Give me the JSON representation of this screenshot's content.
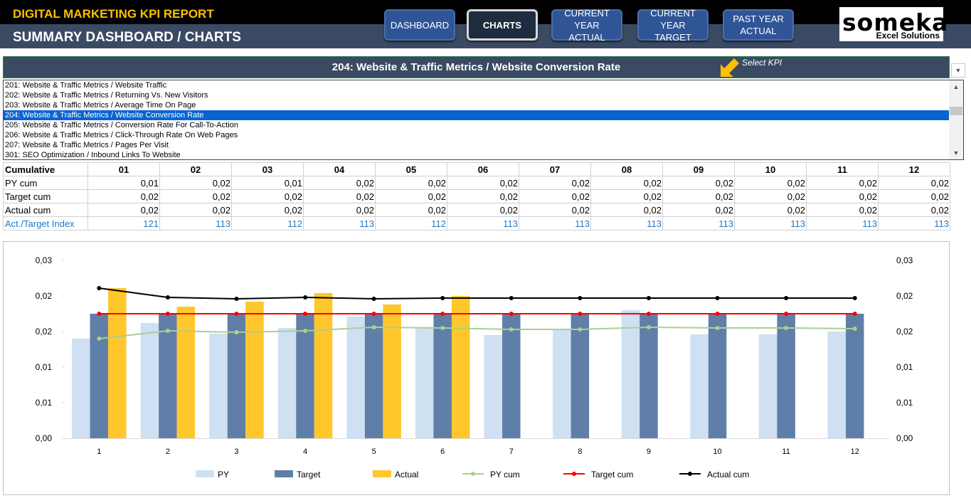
{
  "header": {
    "app_title": "DIGITAL MARKETING KPI REPORT",
    "page_title": "SUMMARY DASHBOARD / CHARTS",
    "nav": [
      {
        "line1": "DASHBOARD",
        "line2": ""
      },
      {
        "line1": "CHARTS",
        "line2": ""
      },
      {
        "line1": "CURRENT YEAR",
        "line2": "ACTUAL"
      },
      {
        "line1": "CURRENT YEAR",
        "line2": "TARGET"
      },
      {
        "line1": "PAST YEAR",
        "line2": "ACTUAL"
      }
    ],
    "active_nav": "CHARTS",
    "logo_word": "someka",
    "logo_sub": "Excel Solutions"
  },
  "kpi": {
    "selected_title": "204: Website & Traffic Metrics / Website Conversion Rate",
    "hint": "Select KPI",
    "options": [
      "201: Website & Traffic Metrics / Website Traffic",
      "202: Website & Traffic Metrics / Returning Vs. New Visitors",
      "203: Website & Traffic Metrics / Average Time On Page",
      "204: Website & Traffic Metrics / Website Conversion Rate",
      "205: Website & Traffic Metrics / Conversion Rate For Call-To-Action",
      "206: Website & Traffic Metrics / Click-Through Rate On Web Pages",
      "207: Website & Traffic Metrics / Pages Per Visit",
      "301: SEO Optimization / Inbound Links To Website"
    ],
    "selected_index": 3
  },
  "cumulative_table": {
    "header_label": "Cumulative",
    "months": [
      "01",
      "02",
      "03",
      "04",
      "05",
      "06",
      "07",
      "08",
      "09",
      "10",
      "11",
      "12"
    ],
    "rows": [
      {
        "label": "PY cum",
        "values": [
          "0,01",
          "0,02",
          "0,01",
          "0,02",
          "0,02",
          "0,02",
          "0,02",
          "0,02",
          "0,02",
          "0,02",
          "0,02",
          "0,02"
        ]
      },
      {
        "label": "Target cum",
        "values": [
          "0,02",
          "0,02",
          "0,02",
          "0,02",
          "0,02",
          "0,02",
          "0,02",
          "0,02",
          "0,02",
          "0,02",
          "0,02",
          "0,02"
        ]
      },
      {
        "label": "Actual cum",
        "values": [
          "0,02",
          "0,02",
          "0,02",
          "0,02",
          "0,02",
          "0,02",
          "0,02",
          "0,02",
          "0,02",
          "0,02",
          "0,02",
          "0,02"
        ]
      },
      {
        "label": "Act./Target Index",
        "values": [
          "121",
          "113",
          "112",
          "113",
          "112",
          "113",
          "113",
          "113",
          "113",
          "113",
          "113",
          "113"
        ]
      }
    ]
  },
  "chart_data": {
    "type": "bar",
    "categories": [
      "1",
      "2",
      "3",
      "4",
      "5",
      "6",
      "7",
      "8",
      "9",
      "10",
      "11",
      "12"
    ],
    "ylim": [
      0,
      0.025
    ],
    "y_tick_labels": [
      "0,00",
      "0,01",
      "0,01",
      "0,02",
      "0,02",
      "0,03"
    ],
    "y_tick_values": [
      0,
      0.005,
      0.01,
      0.015,
      0.02,
      0.025
    ],
    "grid": false,
    "legend_position": "bottom",
    "series": [
      {
        "name": "PY",
        "type": "bar",
        "color": "#cfe0f3",
        "values": [
          0.014,
          0.0162,
          0.0147,
          0.0155,
          0.0171,
          0.0155,
          0.0145,
          0.0152,
          0.018,
          0.0146,
          0.0146,
          0.015
        ]
      },
      {
        "name": "Target",
        "type": "bar",
        "color": "#5f7fa8",
        "values": [
          0.0175,
          0.0175,
          0.0175,
          0.0175,
          0.0175,
          0.0175,
          0.0175,
          0.0175,
          0.0175,
          0.0175,
          0.0175,
          0.0175
        ]
      },
      {
        "name": "Actual",
        "type": "bar",
        "color": "#ffc72c",
        "values": [
          0.0211,
          0.0185,
          0.0192,
          0.0204,
          0.0188,
          0.02,
          null,
          null,
          null,
          null,
          null,
          null
        ]
      },
      {
        "name": "PY cum",
        "type": "line",
        "color": "#a9d18e",
        "values": [
          0.014,
          0.0151,
          0.0149,
          0.0151,
          0.0156,
          0.0155,
          0.0153,
          0.0153,
          0.0156,
          0.0155,
          0.0155,
          0.0154
        ]
      },
      {
        "name": "Target cum",
        "type": "line",
        "color": "#ff0000",
        "values": [
          0.0175,
          0.0175,
          0.0175,
          0.0175,
          0.0175,
          0.0175,
          0.0175,
          0.0175,
          0.0175,
          0.0175,
          0.0175,
          0.0175
        ]
      },
      {
        "name": "Actual cum",
        "type": "line",
        "color": "#000000",
        "values": [
          0.0211,
          0.0198,
          0.0196,
          0.0198,
          0.0196,
          0.0197,
          0.0197,
          0.0197,
          0.0197,
          0.0197,
          0.0197,
          0.0197
        ]
      }
    ]
  }
}
